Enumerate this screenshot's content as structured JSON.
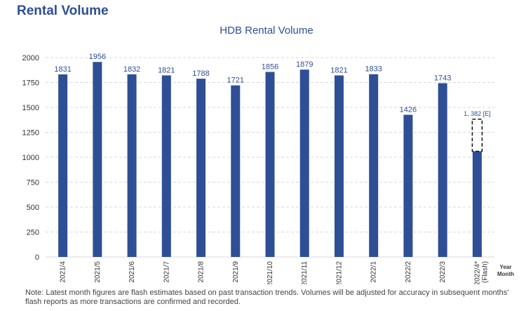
{
  "page": {
    "heading": "Rental Volume",
    "note": "Note: Latest month figures are flash estimates based on past transaction trends. Volumes will be adjusted for accuracy in subsequent months' flash reports as more transactions are confirmed and recorded."
  },
  "colors": {
    "bar": "#2e4f95",
    "grid": "#d9d9d9",
    "text": "#333333"
  },
  "chart_data": {
    "type": "bar",
    "title": "HDB Rental Volume",
    "xlabel": "Year Month",
    "xlabel_lines": [
      "Year",
      "Month"
    ],
    "ylabel": "",
    "ylim": [
      0,
      2000
    ],
    "yticks": [
      0,
      250,
      500,
      750,
      1000,
      1250,
      1500,
      1750,
      2000
    ],
    "grid": true,
    "categories": [
      "2021/4",
      "2021/5",
      "2021/6",
      "2021/7",
      "2021/8",
      "2021/9",
      "2021/10",
      "2021/11",
      "2021/12",
      "2022/1",
      "2022/2",
      "2022/3",
      "2022/4* (Flash)"
    ],
    "category_lines": [
      [
        "2021/4"
      ],
      [
        "2021/5"
      ],
      [
        "2021/6"
      ],
      [
        "2021/7"
      ],
      [
        "2021/8"
      ],
      [
        "2021/9"
      ],
      [
        "2021/10"
      ],
      [
        "2021/11"
      ],
      [
        "2021/12"
      ],
      [
        "2022/1"
      ],
      [
        "2022/2"
      ],
      [
        "2022/3"
      ],
      [
        "2022/4*",
        "(Flash)"
      ]
    ],
    "values": [
      1831,
      1956,
      1832,
      1821,
      1788,
      1721,
      1856,
      1879,
      1821,
      1833,
      1426,
      1743,
      1060
    ],
    "data_labels": [
      "1831",
      "1956",
      "1832",
      "1821",
      "1788",
      "1721",
      "1856",
      "1879",
      "1821",
      "1833",
      "1426",
      "1743",
      ""
    ],
    "estimate": {
      "index": 12,
      "value": 1382,
      "label": "1, 382 [E]"
    }
  }
}
